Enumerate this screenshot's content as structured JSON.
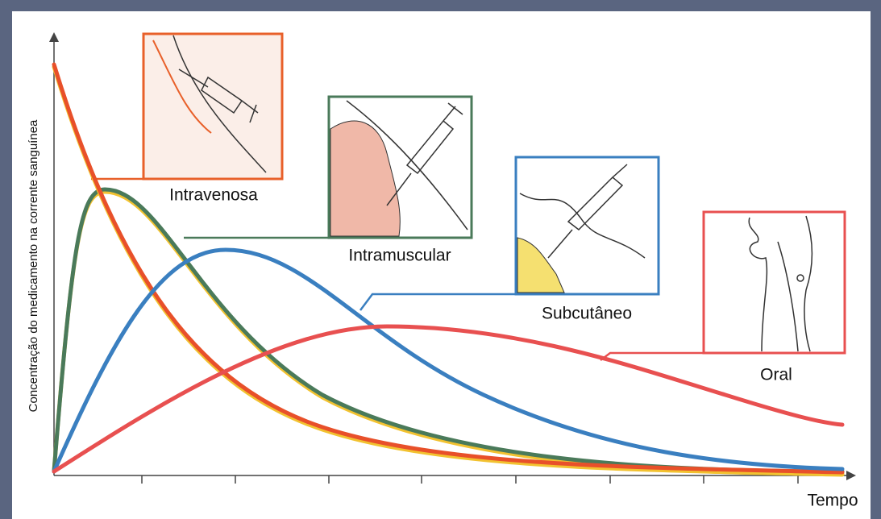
{
  "axes": {
    "y_label": "Concentração do medicamento na corrente sanguínea",
    "x_label": "Tempo"
  },
  "routes": [
    {
      "label": "Intravenosa"
    },
    {
      "label": "Intramuscular"
    },
    {
      "label": "Subcutâneo"
    },
    {
      "label": "Oral"
    }
  ]
}
